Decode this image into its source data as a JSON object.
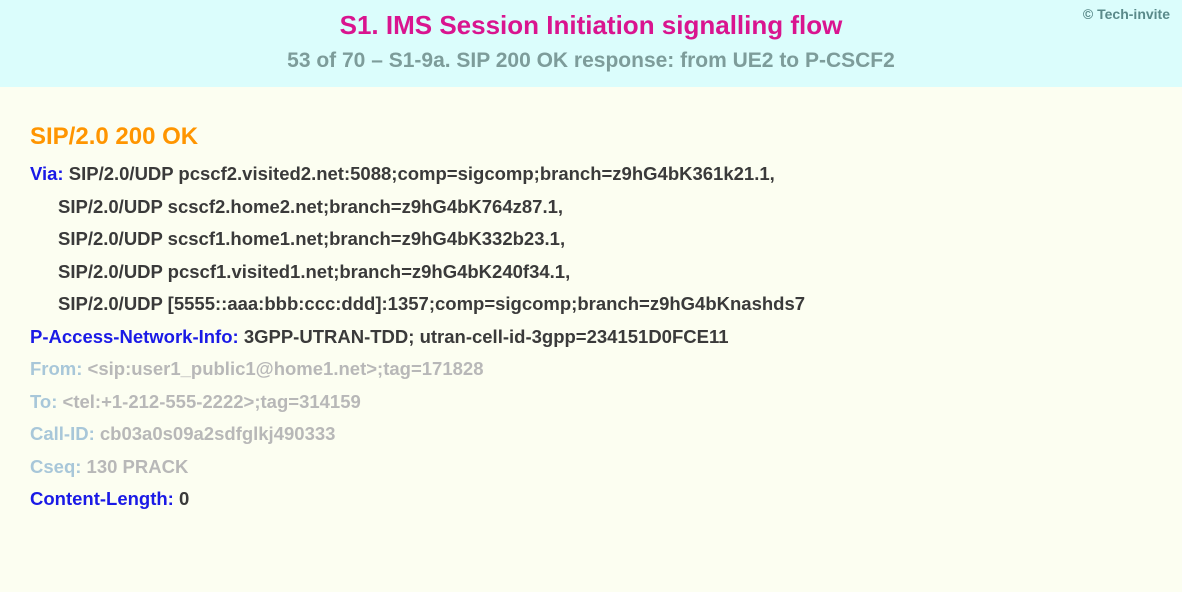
{
  "header": {
    "copyright": "© Tech-invite",
    "title": "S1. IMS Session Initiation signalling flow",
    "subtitle": "53 of 70 – S1-9a. SIP 200 OK response: from UE2 to P-CSCF2"
  },
  "colors": {
    "header_bg": "#dbfdfc",
    "body_bg": "#fcfef1",
    "title_color": "#d9148f",
    "subtitle_color": "#7d9c9a",
    "copyright_color": "#5a8a8a",
    "status_color": "#ff9500",
    "header_active": "#1a1ae6",
    "value_active": "#3a3a3a",
    "header_faded": "#a8c7d9",
    "value_faded": "#b8b8b8"
  },
  "sip": {
    "status_line": "SIP/2.0 200 OK",
    "lines": [
      {
        "header": "Via:",
        "value": " SIP/2.0/UDP pcscf2.visited2.net:5088;comp=sigcomp;branch=z9hG4bK361k21.1,",
        "faded": false,
        "indent": false
      },
      {
        "header": "",
        "value": "SIP/2.0/UDP scscf2.home2.net;branch=z9hG4bK764z87.1,",
        "faded": false,
        "indent": true
      },
      {
        "header": "",
        "value": "SIP/2.0/UDP scscf1.home1.net;branch=z9hG4bK332b23.1,",
        "faded": false,
        "indent": true
      },
      {
        "header": "",
        "value": "SIP/2.0/UDP pcscf1.visited1.net;branch=z9hG4bK240f34.1,",
        "faded": false,
        "indent": true
      },
      {
        "header": "",
        "value": "SIP/2.0/UDP [5555::aaa:bbb:ccc:ddd]:1357;comp=sigcomp;branch=z9hG4bKnashds7",
        "faded": false,
        "indent": true
      },
      {
        "header": "P-Access-Network-Info:",
        "value": " 3GPP-UTRAN-TDD; utran-cell-id-3gpp=234151D0FCE11",
        "faded": false,
        "indent": false
      },
      {
        "header": "From:",
        "value": " <sip:user1_public1@home1.net>;tag=171828",
        "faded": true,
        "indent": false
      },
      {
        "header": "To:",
        "value": " <tel:+1-212-555-2222>;tag=314159",
        "faded": true,
        "indent": false
      },
      {
        "header": "Call-ID:",
        "value": " cb03a0s09a2sdfglkj490333",
        "faded": true,
        "indent": false
      },
      {
        "header": "Cseq:",
        "value": " 130 PRACK",
        "faded": true,
        "indent": false
      },
      {
        "header": "Content-Length:",
        "value": " 0",
        "faded": false,
        "indent": false
      }
    ]
  }
}
